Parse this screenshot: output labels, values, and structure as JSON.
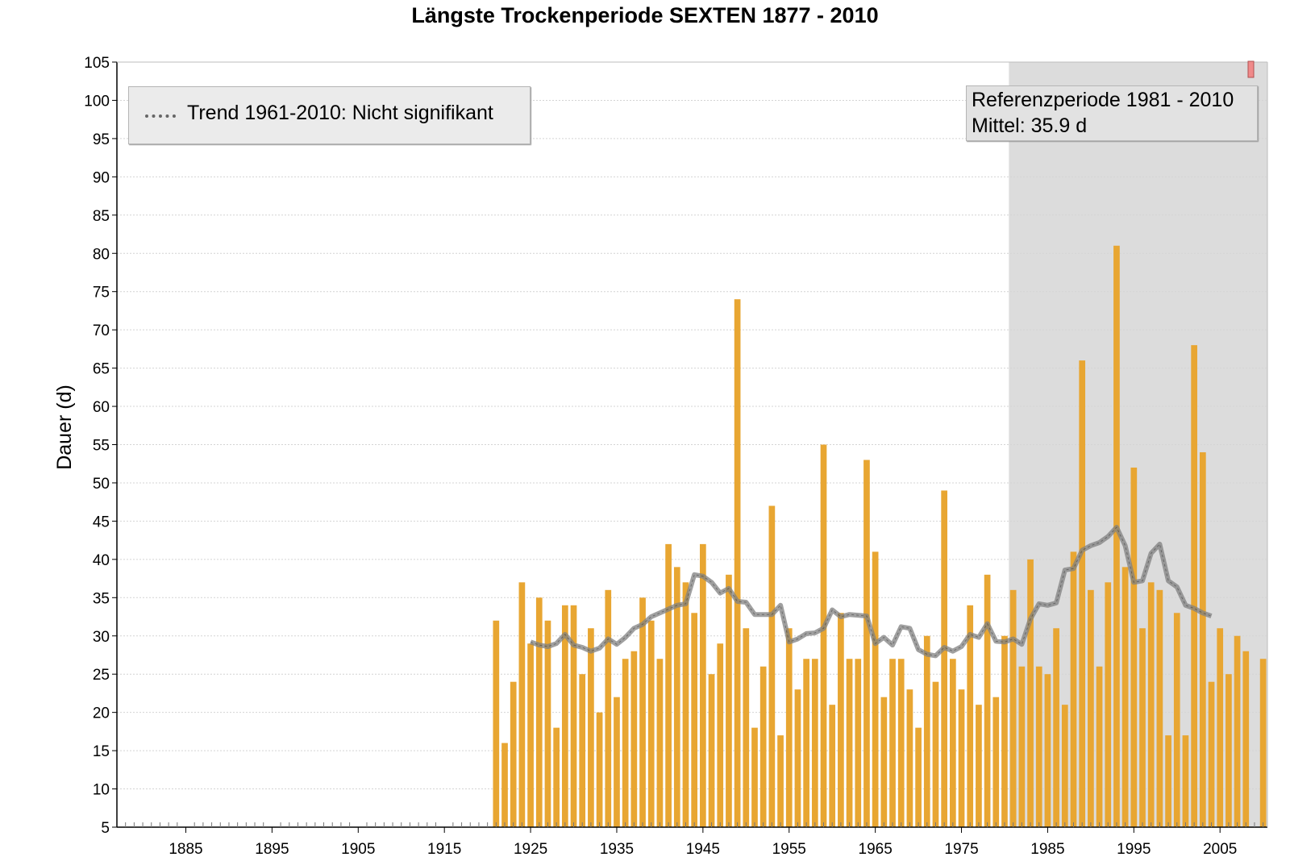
{
  "chart_data": {
    "type": "bar",
    "title": "Längste Trockenperiode SEXTEN 1877 - 2010",
    "ylabel": "Dauer (d)",
    "xlabel": "",
    "xlim": [
      1877,
      2010
    ],
    "ylim": [
      5,
      105
    ],
    "yticks": [
      5,
      10,
      15,
      20,
      25,
      30,
      35,
      40,
      45,
      50,
      55,
      60,
      65,
      70,
      75,
      80,
      85,
      90,
      95,
      100,
      105
    ],
    "xticks": [
      1885,
      1895,
      1905,
      1915,
      1925,
      1935,
      1945,
      1955,
      1965,
      1975,
      1985,
      1995,
      2005
    ],
    "grid": "horizontal",
    "x": [
      1921,
      1922,
      1923,
      1924,
      1925,
      1926,
      1927,
      1928,
      1929,
      1930,
      1931,
      1932,
      1933,
      1934,
      1935,
      1936,
      1937,
      1938,
      1939,
      1940,
      1941,
      1942,
      1943,
      1944,
      1945,
      1946,
      1947,
      1948,
      1949,
      1950,
      1951,
      1952,
      1953,
      1954,
      1955,
      1956,
      1957,
      1958,
      1959,
      1960,
      1961,
      1962,
      1963,
      1964,
      1965,
      1966,
      1967,
      1968,
      1969,
      1970,
      1971,
      1972,
      1973,
      1974,
      1975,
      1976,
      1977,
      1978,
      1979,
      1980,
      1981,
      1982,
      1983,
      1984,
      1985,
      1986,
      1987,
      1988,
      1989,
      1990,
      1991,
      1992,
      1993,
      1994,
      1995,
      1996,
      1997,
      1998,
      1999,
      2000,
      2001,
      2002,
      2003,
      2004,
      2005,
      2006,
      2007,
      2008,
      2009,
      2010
    ],
    "values": [
      32,
      16,
      24,
      37,
      29,
      35,
      32,
      18,
      34,
      34,
      25,
      31,
      20,
      36,
      22,
      27,
      28,
      35,
      32,
      27,
      42,
      39,
      37,
      33,
      42,
      25,
      29,
      38,
      74,
      31,
      18,
      26,
      47,
      17,
      31,
      23,
      27,
      27,
      55,
      21,
      33,
      27,
      27,
      53,
      41,
      22,
      27,
      27,
      23,
      18,
      30,
      24,
      49,
      27,
      23,
      34,
      21,
      38,
      22,
      30,
      36,
      26,
      40,
      26,
      25,
      31,
      21,
      41,
      66,
      36,
      26,
      37,
      81,
      39,
      52,
      31,
      37,
      36,
      17,
      33,
      17,
      68,
      54,
      24,
      31,
      25,
      30,
      28,
      null,
      27
    ],
    "bar_color": "#e8a632",
    "trend": {
      "x": [
        1925,
        1926,
        1927,
        1928,
        1929,
        1930,
        1931,
        1932,
        1933,
        1934,
        1935,
        1936,
        1937,
        1938,
        1939,
        1940,
        1941,
        1942,
        1943,
        1944,
        1945,
        1946,
        1947,
        1948,
        1949,
        1950,
        1951,
        1952,
        1953,
        1954,
        1955,
        1956,
        1957,
        1958,
        1959,
        1960,
        1961,
        1962,
        1963,
        1964,
        1965,
        1966,
        1967,
        1968,
        1969,
        1970,
        1971,
        1972,
        1973,
        1974,
        1975,
        1976,
        1977,
        1978,
        1979,
        1980,
        1981,
        1982,
        1983,
        1984,
        1985,
        1986,
        1987,
        1988,
        1989,
        1990,
        1991,
        1992,
        1993,
        1994,
        1995,
        1996,
        1997,
        1998,
        1999,
        2000,
        2001,
        2002,
        2003,
        2004
      ],
      "values": [
        29.2,
        28.8,
        28.6,
        29.0,
        30.2,
        28.8,
        28.5,
        28.0,
        28.4,
        29.6,
        28.9,
        29.8,
        31.0,
        31.5,
        32.5,
        33.0,
        33.5,
        34.0,
        34.2,
        38.0,
        37.8,
        37.0,
        35.6,
        36.2,
        34.5,
        34.4,
        32.8,
        32.8,
        32.8,
        34.0,
        29.2,
        29.6,
        30.3,
        30.4,
        31.0,
        33.4,
        32.5,
        32.8,
        32.7,
        32.6,
        29.0,
        29.8,
        28.8,
        31.2,
        31.0,
        28.2,
        27.6,
        27.4,
        28.5,
        28.0,
        28.6,
        30.2,
        29.8,
        31.6,
        29.3,
        29.2,
        29.6,
        28.9,
        32.2,
        34.2,
        34.0,
        34.3,
        38.6,
        38.8,
        41.2,
        41.8,
        42.2,
        43.0,
        44.2,
        41.8,
        37.0,
        37.2,
        40.8,
        42.0,
        37.2,
        36.4,
        34.0,
        33.6,
        33.0,
        32.6
      ],
      "color": "#808080"
    },
    "reference": {
      "from": 1981,
      "to": 2010,
      "label": "Referenzperiode 1981 - 2010",
      "mean": "Mittel: 35.9 d",
      "color": "#dcdcdc"
    },
    "legend": {
      "label": "Trend 1961-2010: Nicht signifikant",
      "position": "top-left"
    }
  }
}
